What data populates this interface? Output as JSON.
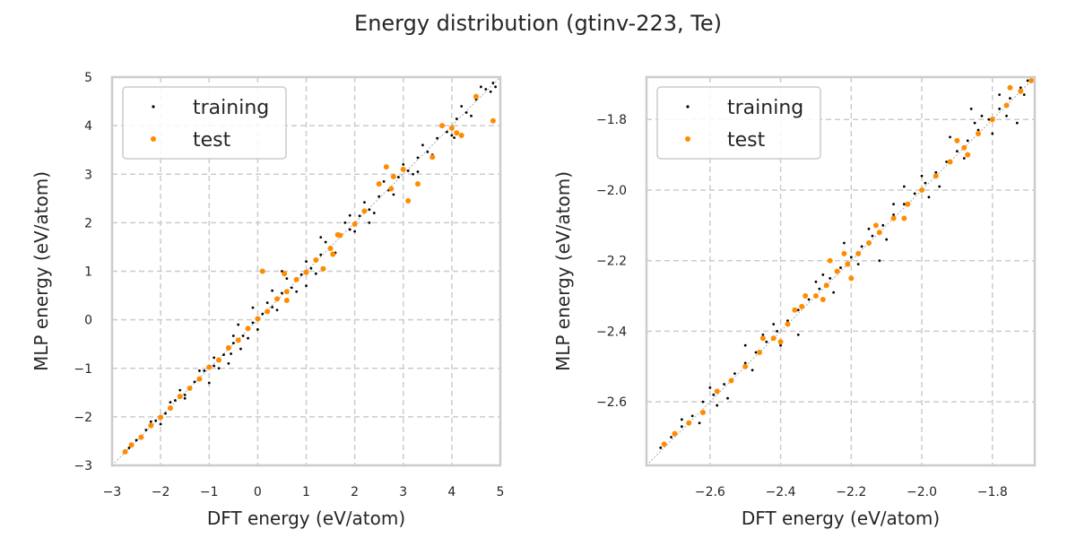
{
  "figure": {
    "suptitle": "Energy distribution (gtinv-223, Te)"
  },
  "colors": {
    "training": "#000000",
    "test": "#ff8c00",
    "grid": "#cccccc",
    "spine": "#cccccc",
    "diagonal": "#999999"
  },
  "chart_data": [
    {
      "type": "scatter",
      "xlabel": "DFT energy (eV/atom)",
      "ylabel": "MLP energy (eV/atom)",
      "xlim": [
        -3,
        5
      ],
      "ylim": [
        -3,
        5
      ],
      "xticks": [
        -3,
        -2,
        -1,
        0,
        1,
        2,
        3,
        4,
        5
      ],
      "yticks": [
        -3,
        -2,
        -1,
        0,
        1,
        2,
        3,
        4,
        5
      ],
      "xtick_labels": [
        "−3",
        "−2",
        "−1",
        "0",
        "1",
        "2",
        "3",
        "4",
        "5"
      ],
      "ytick_labels": [
        "−3",
        "−2",
        "−1",
        "0",
        "1",
        "2",
        "3",
        "4",
        "5"
      ],
      "grid": true,
      "diagonal": true,
      "legend": {
        "placement": "top-left",
        "entries": [
          "training",
          "test"
        ]
      },
      "series": [
        {
          "name": "training",
          "points": [
            [
              -2.75,
              -2.73
            ],
            [
              -2.65,
              -2.64
            ],
            [
              -2.5,
              -2.48
            ],
            [
              -2.3,
              -2.27
            ],
            [
              -2.1,
              -2.08
            ],
            [
              -1.9,
              -1.93
            ],
            [
              -1.7,
              -1.66
            ],
            [
              -1.5,
              -1.55
            ],
            [
              -1.3,
              -1.28
            ],
            [
              -1.1,
              -1.05
            ],
            [
              -0.9,
              -0.95
            ],
            [
              -0.7,
              -0.72
            ],
            [
              -0.5,
              -0.48
            ],
            [
              -0.3,
              -0.33
            ],
            [
              -0.1,
              -0.06
            ],
            [
              0.1,
              0.12
            ],
            [
              0.3,
              0.26
            ],
            [
              0.5,
              0.55
            ],
            [
              0.7,
              0.66
            ],
            [
              0.9,
              0.93
            ],
            [
              1.1,
              1.06
            ],
            [
              1.3,
              1.34
            ],
            [
              1.5,
              1.47
            ],
            [
              1.7,
              1.74
            ],
            [
              1.9,
              1.86
            ],
            [
              2.1,
              2.14
            ],
            [
              2.3,
              2.27
            ],
            [
              2.5,
              2.54
            ],
            [
              2.7,
              2.67
            ],
            [
              2.9,
              2.94
            ],
            [
              3.1,
              3.07
            ],
            [
              3.3,
              3.34
            ],
            [
              3.5,
              3.46
            ],
            [
              3.7,
              3.74
            ],
            [
              3.9,
              3.87
            ],
            [
              4.1,
              4.14
            ],
            [
              4.3,
              4.27
            ],
            [
              4.5,
              4.54
            ],
            [
              4.7,
              4.75
            ],
            [
              4.85,
              4.88
            ],
            [
              -1.8,
              -1.7
            ],
            [
              -1.5,
              -1.62
            ],
            [
              -1.2,
              -1.05
            ],
            [
              -0.9,
              -0.78
            ],
            [
              -0.8,
              -1.0
            ],
            [
              -0.5,
              -0.33
            ],
            [
              -0.2,
              -0.38
            ],
            [
              0.2,
              0.35
            ],
            [
              0.4,
              0.2
            ],
            [
              0.6,
              0.85
            ],
            [
              0.8,
              0.58
            ],
            [
              1.0,
              1.2
            ],
            [
              1.2,
              0.95
            ],
            [
              1.4,
              1.6
            ],
            [
              1.6,
              1.38
            ],
            [
              1.8,
              2.0
            ],
            [
              2.0,
              1.82
            ],
            [
              2.2,
              2.42
            ],
            [
              2.4,
              2.2
            ],
            [
              2.6,
              2.85
            ],
            [
              2.8,
              2.58
            ],
            [
              3.0,
              3.2
            ],
            [
              3.2,
              3.0
            ],
            [
              3.4,
              3.6
            ],
            [
              3.6,
              3.4
            ],
            [
              3.8,
              4.0
            ],
            [
              4.0,
              3.8
            ],
            [
              4.2,
              4.4
            ],
            [
              4.4,
              4.2
            ],
            [
              4.6,
              4.8
            ],
            [
              -0.4,
              -0.1
            ],
            [
              -0.55,
              -0.7
            ],
            [
              0.5,
              1.0
            ],
            [
              1.0,
              0.7
            ],
            [
              1.3,
              1.7
            ],
            [
              -0.1,
              0.25
            ],
            [
              0.0,
              -0.2
            ],
            [
              -1.0,
              -1.3
            ],
            [
              -0.6,
              -0.9
            ],
            [
              -2.2,
              -2.1
            ],
            [
              -2.0,
              -2.15
            ],
            [
              -1.6,
              -1.45
            ],
            [
              3.3,
              3.05
            ],
            [
              4.05,
              3.75
            ],
            [
              2.3,
              2.0
            ],
            [
              1.9,
              2.15
            ],
            [
              0.3,
              0.6
            ],
            [
              -0.35,
              -0.6
            ],
            [
              4.8,
              4.7
            ],
            [
              4.9,
              4.8
            ]
          ]
        },
        {
          "name": "test",
          "points": [
            [
              -2.73,
              -2.72
            ],
            [
              -2.6,
              -2.58
            ],
            [
              -2.4,
              -2.42
            ],
            [
              -2.2,
              -2.18
            ],
            [
              -2.0,
              -2.01
            ],
            [
              -1.8,
              -1.82
            ],
            [
              -1.6,
              -1.58
            ],
            [
              -1.4,
              -1.41
            ],
            [
              -1.2,
              -1.22
            ],
            [
              -1.0,
              -0.98
            ],
            [
              -0.8,
              -0.83
            ],
            [
              -0.6,
              -0.58
            ],
            [
              -0.4,
              -0.42
            ],
            [
              -0.2,
              -0.18
            ],
            [
              0.0,
              0.02
            ],
            [
              0.2,
              0.17
            ],
            [
              0.4,
              0.43
            ],
            [
              0.6,
              0.58
            ],
            [
              0.8,
              0.83
            ],
            [
              1.0,
              0.98
            ],
            [
              1.2,
              1.23
            ],
            [
              1.5,
              1.47
            ],
            [
              1.7,
              1.74
            ],
            [
              2.0,
              1.97
            ],
            [
              2.2,
              2.24
            ],
            [
              2.5,
              2.8
            ],
            [
              2.65,
              3.15
            ],
            [
              2.8,
              2.95
            ],
            [
              3.0,
              3.1
            ],
            [
              3.1,
              2.45
            ],
            [
              3.3,
              2.8
            ],
            [
              3.6,
              3.35
            ],
            [
              3.8,
              4.0
            ],
            [
              4.0,
              3.95
            ],
            [
              4.1,
              3.85
            ],
            [
              4.2,
              3.8
            ],
            [
              4.5,
              4.6
            ],
            [
              4.85,
              4.1
            ],
            [
              0.1,
              1.0
            ],
            [
              0.55,
              0.95
            ],
            [
              0.6,
              0.4
            ],
            [
              1.35,
              1.05
            ],
            [
              1.65,
              1.75
            ],
            [
              1.55,
              1.35
            ],
            [
              2.75,
              2.7
            ]
          ]
        }
      ]
    },
    {
      "type": "scatter",
      "xlabel": "DFT energy (eV/atom)",
      "ylabel": "MLP energy (eV/atom)",
      "xlim": [
        -2.78,
        -1.68
      ],
      "ylim": [
        -2.78,
        -1.68
      ],
      "xticks": [
        -2.6,
        -2.4,
        -2.2,
        -2.0,
        -1.8
      ],
      "yticks": [
        -2.6,
        -2.4,
        -2.2,
        -2.0,
        -1.8
      ],
      "xtick_labels": [
        "−2.6",
        "−2.4",
        "−2.2",
        "−2.0",
        "−1.8"
      ],
      "ytick_labels": [
        "−2.6",
        "−2.4",
        "−2.2",
        "−2.0",
        "−1.8"
      ],
      "grid": true,
      "diagonal": true,
      "legend": {
        "placement": "top-left",
        "entries": [
          "training",
          "test"
        ]
      },
      "series": [
        {
          "name": "training",
          "points": [
            [
              -2.74,
              -2.73
            ],
            [
              -2.71,
              -2.7
            ],
            [
              -2.68,
              -2.67
            ],
            [
              -2.65,
              -2.64
            ],
            [
              -2.62,
              -2.6
            ],
            [
              -2.59,
              -2.58
            ],
            [
              -2.56,
              -2.55
            ],
            [
              -2.53,
              -2.52
            ],
            [
              -2.5,
              -2.49
            ],
            [
              -2.47,
              -2.46
            ],
            [
              -2.44,
              -2.43
            ],
            [
              -2.41,
              -2.4
            ],
            [
              -2.38,
              -2.37
            ],
            [
              -2.35,
              -2.34
            ],
            [
              -2.32,
              -2.31
            ],
            [
              -2.29,
              -2.28
            ],
            [
              -2.26,
              -2.25
            ],
            [
              -2.23,
              -2.22
            ],
            [
              -2.2,
              -2.19
            ],
            [
              -2.17,
              -2.16
            ],
            [
              -2.14,
              -2.13
            ],
            [
              -2.11,
              -2.1
            ],
            [
              -2.08,
              -2.07
            ],
            [
              -2.05,
              -2.04
            ],
            [
              -2.02,
              -2.01
            ],
            [
              -1.99,
              -1.98
            ],
            [
              -1.96,
              -1.95
            ],
            [
              -1.93,
              -1.92
            ],
            [
              -1.9,
              -1.89
            ],
            [
              -1.87,
              -1.86
            ],
            [
              -1.84,
              -1.83
            ],
            [
              -1.81,
              -1.8
            ],
            [
              -1.78,
              -1.77
            ],
            [
              -1.75,
              -1.74
            ],
            [
              -1.72,
              -1.71
            ],
            [
              -1.7,
              -1.69
            ],
            [
              -2.6,
              -2.56
            ],
            [
              -2.55,
              -2.59
            ],
            [
              -2.45,
              -2.41
            ],
            [
              -2.4,
              -2.44
            ],
            [
              -2.3,
              -2.26
            ],
            [
              -2.25,
              -2.29
            ],
            [
              -2.15,
              -2.11
            ],
            [
              -2.1,
              -2.14
            ],
            [
              -2.0,
              -1.96
            ],
            [
              -1.95,
              -1.99
            ],
            [
              -1.85,
              -1.81
            ],
            [
              -1.8,
              -1.84
            ],
            [
              -1.86,
              -1.77
            ],
            [
              -1.73,
              -1.81
            ],
            [
              -2.22,
              -2.15
            ],
            [
              -2.12,
              -2.2
            ],
            [
              -1.92,
              -1.85
            ],
            [
              -2.5,
              -2.44
            ],
            [
              -2.35,
              -2.41
            ],
            [
              -2.05,
              -1.99
            ],
            [
              -1.78,
              -1.73
            ],
            [
              -2.48,
              -2.51
            ],
            [
              -2.18,
              -2.21
            ],
            [
              -1.88,
              -1.91
            ],
            [
              -2.68,
              -2.65
            ],
            [
              -2.63,
              -2.66
            ],
            [
              -1.76,
              -1.79
            ],
            [
              -2.28,
              -2.24
            ],
            [
              -2.08,
              -2.04
            ],
            [
              -1.98,
              -2.02
            ],
            [
              -1.83,
              -1.79
            ],
            [
              -1.71,
              -1.73
            ],
            [
              -2.42,
              -2.38
            ],
            [
              -2.58,
              -2.61
            ]
          ]
        },
        {
          "name": "test",
          "points": [
            [
              -2.73,
              -2.72
            ],
            [
              -2.7,
              -2.69
            ],
            [
              -2.66,
              -2.66
            ],
            [
              -2.62,
              -2.63
            ],
            [
              -2.58,
              -2.57
            ],
            [
              -2.54,
              -2.54
            ],
            [
              -2.5,
              -2.5
            ],
            [
              -2.46,
              -2.46
            ],
            [
              -2.42,
              -2.42
            ],
            [
              -2.38,
              -2.38
            ],
            [
              -2.34,
              -2.33
            ],
            [
              -2.3,
              -2.3
            ],
            [
              -2.27,
              -2.27
            ],
            [
              -2.24,
              -2.23
            ],
            [
              -2.21,
              -2.21
            ],
            [
              -2.18,
              -2.18
            ],
            [
              -2.15,
              -2.15
            ],
            [
              -2.12,
              -2.12
            ],
            [
              -2.08,
              -2.08
            ],
            [
              -2.04,
              -2.04
            ],
            [
              -2.0,
              -2.0
            ],
            [
              -1.96,
              -1.96
            ],
            [
              -1.92,
              -1.92
            ],
            [
              -1.88,
              -1.88
            ],
            [
              -1.84,
              -1.84
            ],
            [
              -1.8,
              -1.8
            ],
            [
              -1.76,
              -1.76
            ],
            [
              -1.72,
              -1.72
            ],
            [
              -1.69,
              -1.69
            ],
            [
              -2.45,
              -2.42
            ],
            [
              -2.4,
              -2.43
            ],
            [
              -2.33,
              -2.3
            ],
            [
              -2.28,
              -2.31
            ],
            [
              -2.2,
              -2.25
            ],
            [
              -2.13,
              -2.1
            ],
            [
              -2.05,
              -2.08
            ],
            [
              -1.9,
              -1.86
            ],
            [
              -1.87,
              -1.9
            ],
            [
              -1.75,
              -1.71
            ],
            [
              -2.22,
              -2.18
            ],
            [
              -2.36,
              -2.34
            ],
            [
              -2.26,
              -2.2
            ]
          ]
        }
      ]
    }
  ]
}
